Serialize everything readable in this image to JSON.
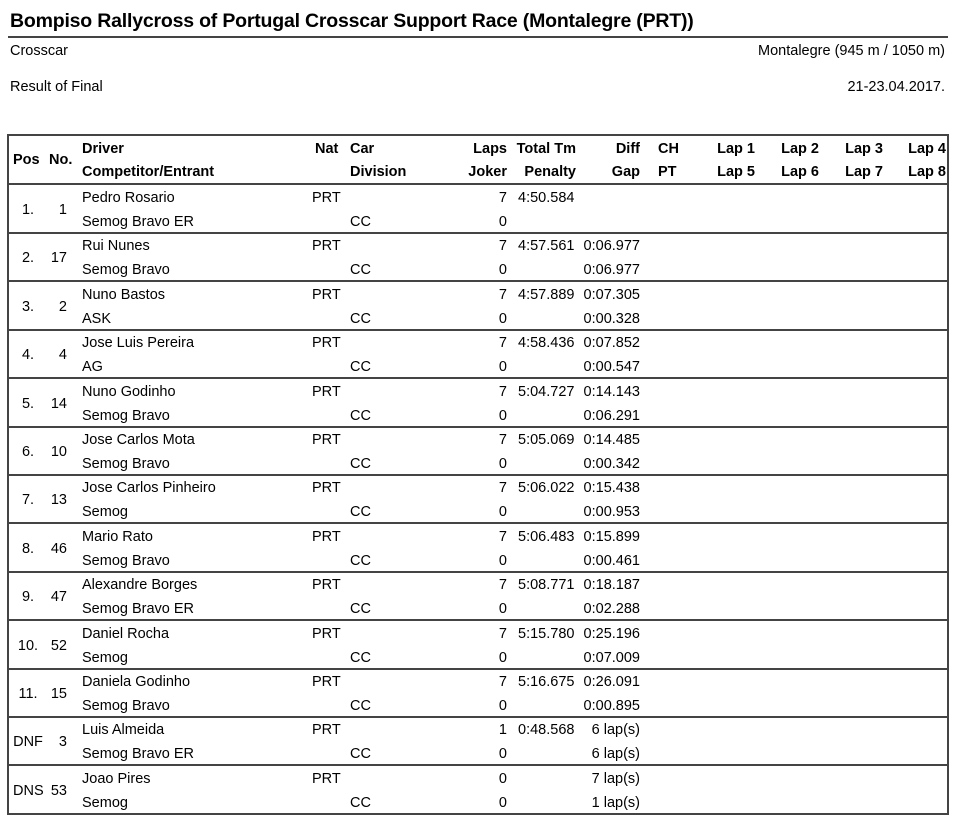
{
  "header": {
    "title": "Bompiso Rallycross of Portugal Crosscar Support Race (Montalegre (PRT))",
    "category": "Crosscar",
    "venue": "Montalegre (945 m / 1050 m)",
    "result_type": "Result of Final",
    "date": "21-23.04.2017."
  },
  "columns": {
    "pos": "Pos",
    "no": "No.",
    "driver": "Driver",
    "competitor": "Competitor/Entrant",
    "nat": "Nat",
    "car": "Car",
    "division": "Division",
    "laps": "Laps",
    "joker": "Joker",
    "total": "Total Tm",
    "penalty": "Penalty",
    "diff": "Diff",
    "gap": "Gap",
    "ch": "CH",
    "pt": "PT",
    "lap1": "Lap 1",
    "lap2": "Lap 2",
    "lap3": "Lap 3",
    "lap4": "Lap 4",
    "lap5": "Lap 5",
    "lap6": "Lap 6",
    "lap7": "Lap 7",
    "lap8": "Lap 8"
  },
  "rows": [
    {
      "pos": "1.",
      "no": "1",
      "driver": "Pedro Rosario",
      "competitor": "Semog Bravo ER",
      "nat": "PRT",
      "division": "CC",
      "laps": "7",
      "joker": "0",
      "total": "4:50.584",
      "diff": "",
      "gap": ""
    },
    {
      "pos": "2.",
      "no": "17",
      "driver": "Rui Nunes",
      "competitor": "Semog Bravo",
      "nat": "PRT",
      "division": "CC",
      "laps": "7",
      "joker": "0",
      "total": "4:57.561",
      "diff": "0:06.977",
      "gap": "0:06.977"
    },
    {
      "pos": "3.",
      "no": "2",
      "driver": "Nuno Bastos",
      "competitor": "ASK",
      "nat": "PRT",
      "division": "CC",
      "laps": "7",
      "joker": "0",
      "total": "4:57.889",
      "diff": "0:07.305",
      "gap": "0:00.328"
    },
    {
      "pos": "4.",
      "no": "4",
      "driver": "Jose Luis Pereira",
      "competitor": "AG",
      "nat": "PRT",
      "division": "CC",
      "laps": "7",
      "joker": "0",
      "total": "4:58.436",
      "diff": "0:07.852",
      "gap": "0:00.547"
    },
    {
      "pos": "5.",
      "no": "14",
      "driver": "Nuno Godinho",
      "competitor": "Semog Bravo",
      "nat": "PRT",
      "division": "CC",
      "laps": "7",
      "joker": "0",
      "total": "5:04.727",
      "diff": "0:14.143",
      "gap": "0:06.291"
    },
    {
      "pos": "6.",
      "no": "10",
      "driver": "Jose Carlos Mota",
      "competitor": "Semog Bravo",
      "nat": "PRT",
      "division": "CC",
      "laps": "7",
      "joker": "0",
      "total": "5:05.069",
      "diff": "0:14.485",
      "gap": "0:00.342"
    },
    {
      "pos": "7.",
      "no": "13",
      "driver": "Jose Carlos Pinheiro",
      "competitor": "Semog",
      "nat": "PRT",
      "division": "CC",
      "laps": "7",
      "joker": "0",
      "total": "5:06.022",
      "diff": "0:15.438",
      "gap": "0:00.953"
    },
    {
      "pos": "8.",
      "no": "46",
      "driver": "Mario Rato",
      "competitor": "Semog Bravo",
      "nat": "PRT",
      "division": "CC",
      "laps": "7",
      "joker": "0",
      "total": "5:06.483",
      "diff": "0:15.899",
      "gap": "0:00.461"
    },
    {
      "pos": "9.",
      "no": "47",
      "driver": "Alexandre Borges",
      "competitor": "Semog Bravo ER",
      "nat": "PRT",
      "division": "CC",
      "laps": "7",
      "joker": "0",
      "total": "5:08.771",
      "diff": "0:18.187",
      "gap": "0:02.288"
    },
    {
      "pos": "10.",
      "no": "52",
      "driver": "Daniel Rocha",
      "competitor": "Semog",
      "nat": "PRT",
      "division": "CC",
      "laps": "7",
      "joker": "0",
      "total": "5:15.780",
      "diff": "0:25.196",
      "gap": "0:07.009"
    },
    {
      "pos": "11.",
      "no": "15",
      "driver": "Daniela Godinho",
      "competitor": "Semog Bravo",
      "nat": "PRT",
      "division": "CC",
      "laps": "7",
      "joker": "0",
      "total": "5:16.675",
      "diff": "0:26.091",
      "gap": "0:00.895"
    },
    {
      "pos": "DNF",
      "no": "3",
      "driver": "Luis Almeida",
      "competitor": "Semog Bravo ER",
      "nat": "PRT",
      "division": "CC",
      "laps": "1",
      "joker": "0",
      "total": "0:48.568",
      "diff": "6 lap(s)",
      "gap": "6 lap(s)"
    },
    {
      "pos": "DNS",
      "no": "53",
      "driver": "Joao Pires",
      "competitor": "Semog",
      "nat": "PRT",
      "division": "CC",
      "laps": "0",
      "joker": "0",
      "total": "",
      "diff": "7 lap(s)",
      "gap": "1 lap(s)"
    }
  ]
}
